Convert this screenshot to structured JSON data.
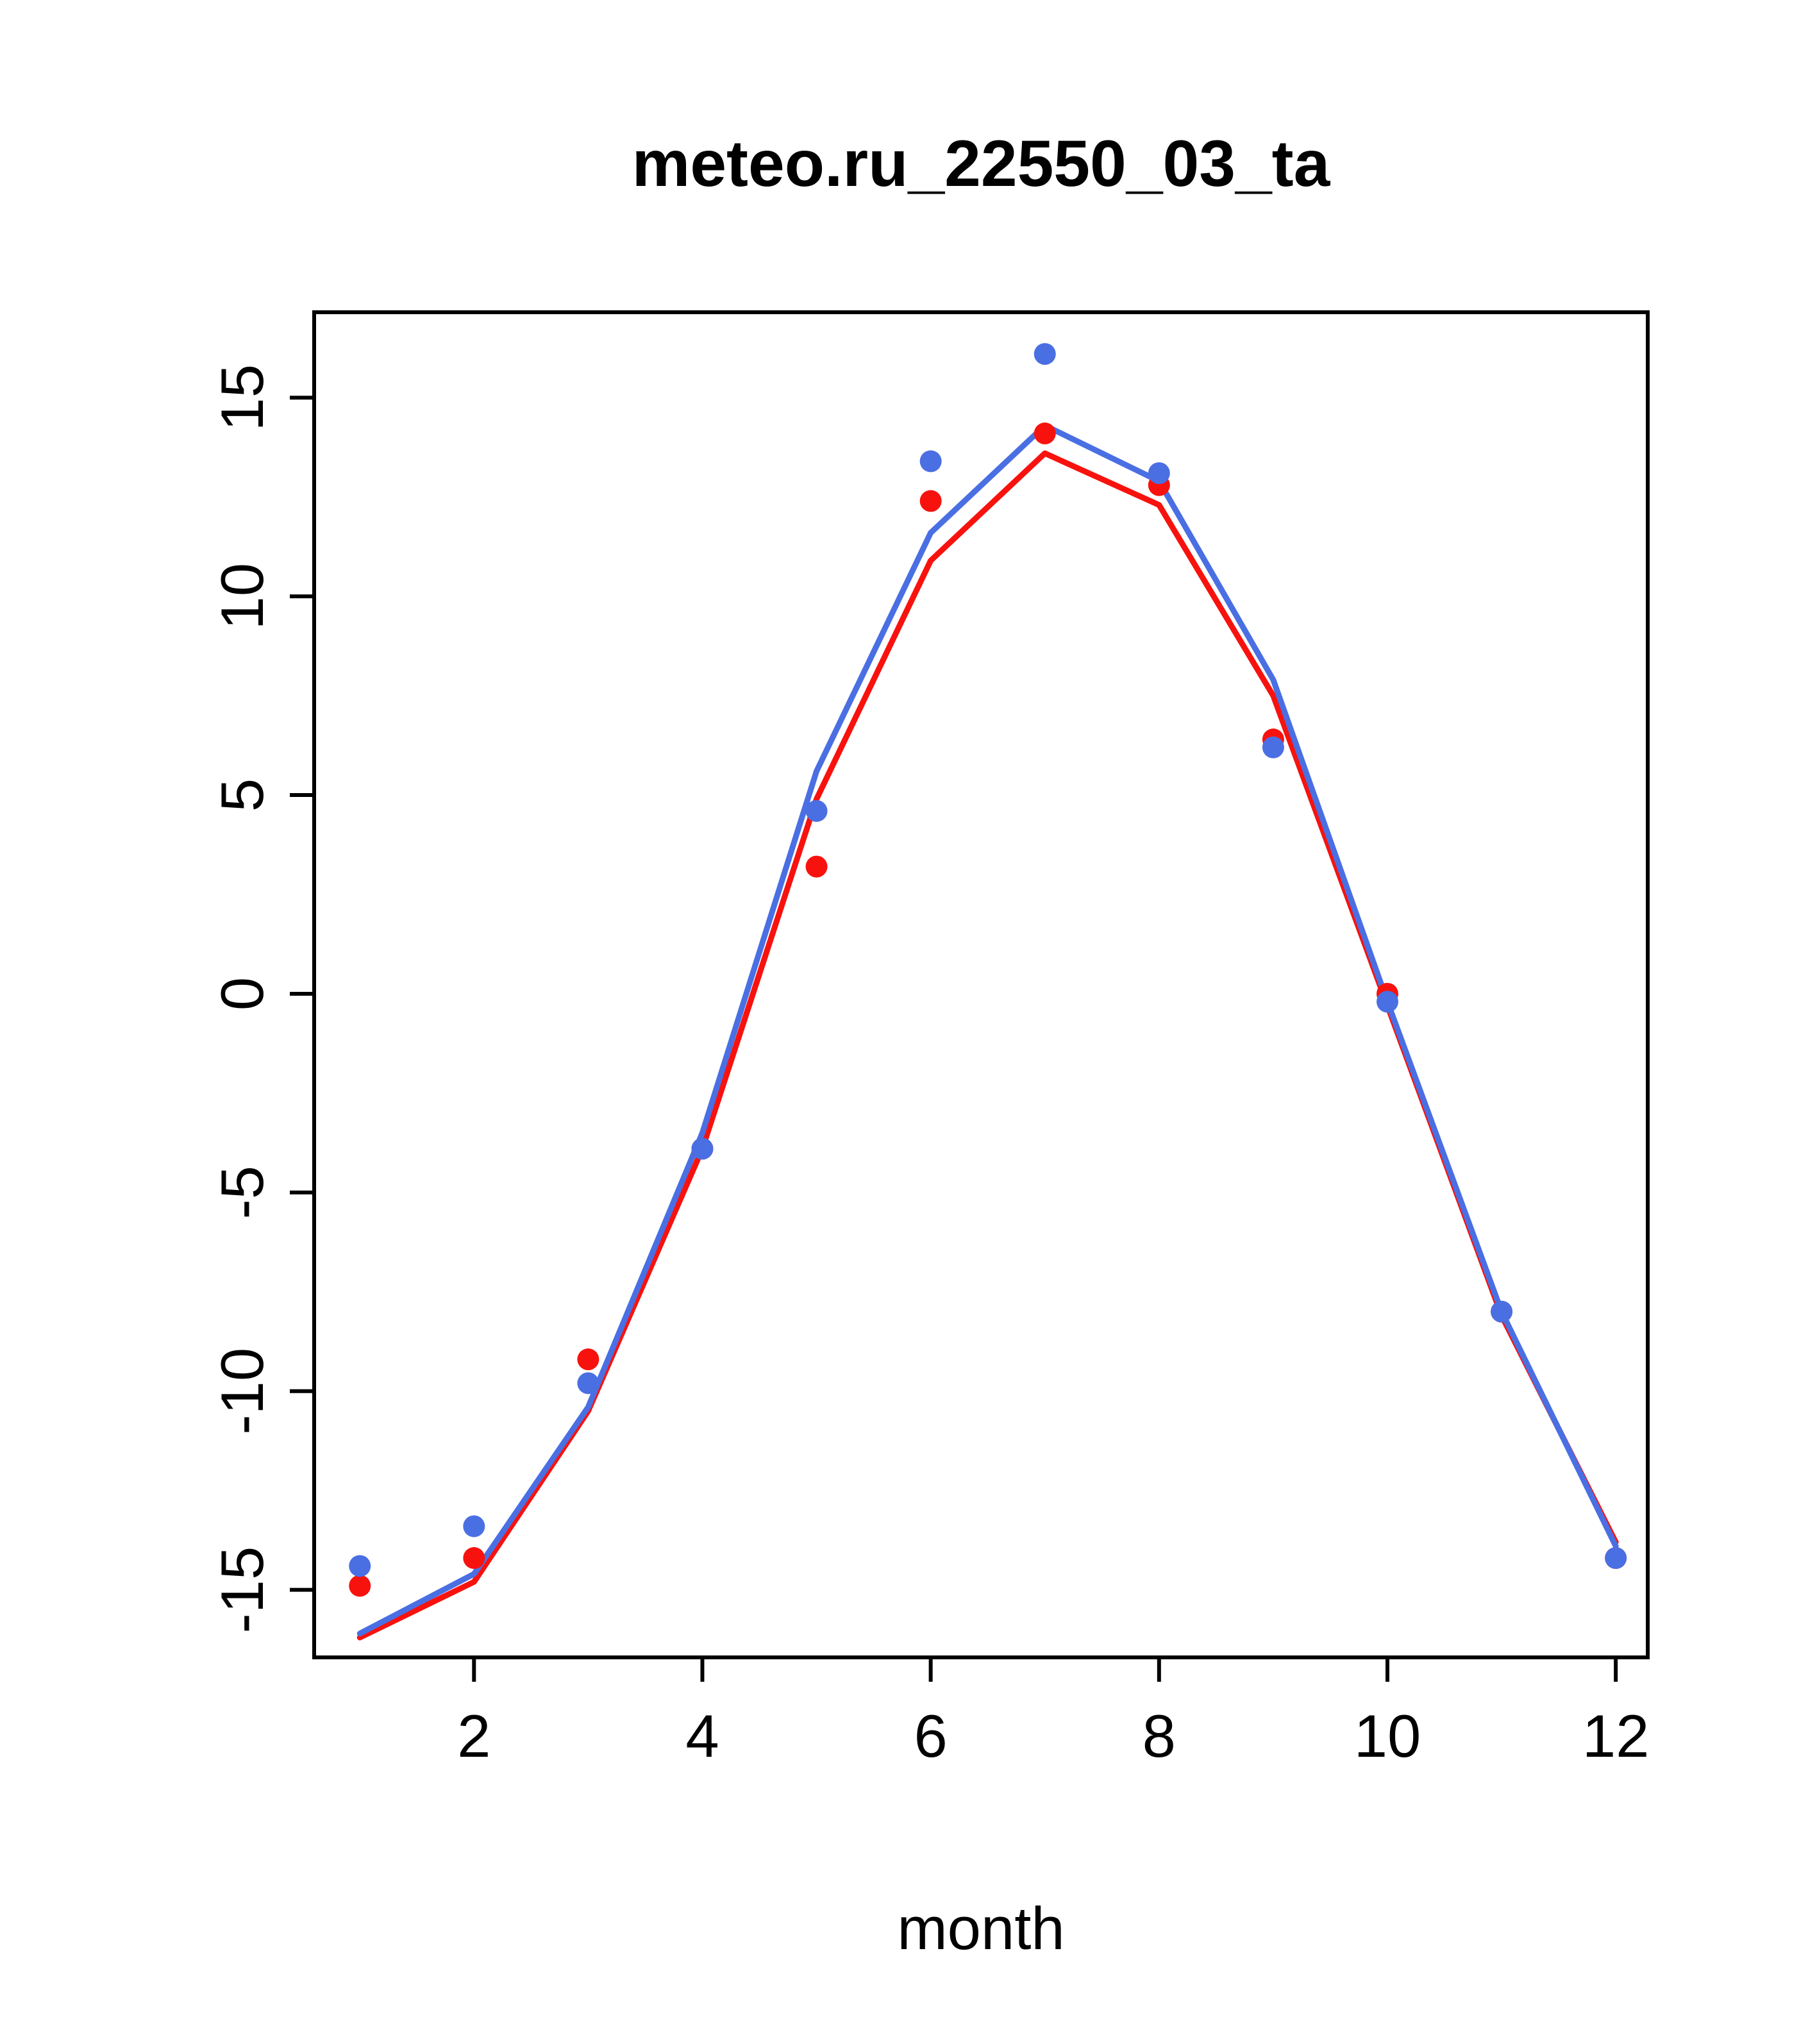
{
  "chart_data": {
    "type": "line",
    "title": "meteo.ru_22550_03_ta",
    "xlabel": "month",
    "ylabel": "",
    "x": [
      1,
      2,
      3,
      4,
      5,
      6,
      7,
      8,
      9,
      10,
      11,
      12
    ],
    "xticks": [
      2,
      4,
      6,
      8,
      10,
      12
    ],
    "yticks": [
      -15,
      -10,
      -5,
      0,
      5,
      10,
      15
    ],
    "xlim": [
      0.6,
      12.28
    ],
    "ylim": [
      -16.7,
      17.15
    ],
    "grid": false,
    "legend": "none",
    "colors": {
      "blue": "#4A6FE3",
      "red": "#F8120E",
      "axis": "#000000"
    },
    "series": [
      {
        "name": "red-line",
        "type": "line",
        "color": "red",
        "values": [
          -16.2,
          -14.8,
          -10.5,
          -3.9,
          4.9,
          10.9,
          13.6,
          12.3,
          7.5,
          -0.3,
          -8.1,
          -13.8
        ]
      },
      {
        "name": "blue-line",
        "type": "line",
        "color": "blue",
        "values": [
          -16.1,
          -14.6,
          -10.4,
          -3.5,
          5.6,
          11.6,
          14.3,
          12.9,
          7.9,
          -0.2,
          -8.0,
          -13.9
        ]
      },
      {
        "name": "red-points",
        "type": "points",
        "color": "red",
        "values": [
          -14.9,
          -14.2,
          -9.2,
          -3.9,
          3.2,
          12.4,
          14.1,
          12.8,
          6.4,
          0.0,
          -8.0,
          -14.2
        ]
      },
      {
        "name": "blue-points",
        "type": "points",
        "color": "blue",
        "values": [
          -14.4,
          -13.4,
          -9.8,
          -3.9,
          4.6,
          13.4,
          16.1,
          13.1,
          6.2,
          -0.2,
          -8.0,
          -14.2
        ]
      }
    ]
  }
}
